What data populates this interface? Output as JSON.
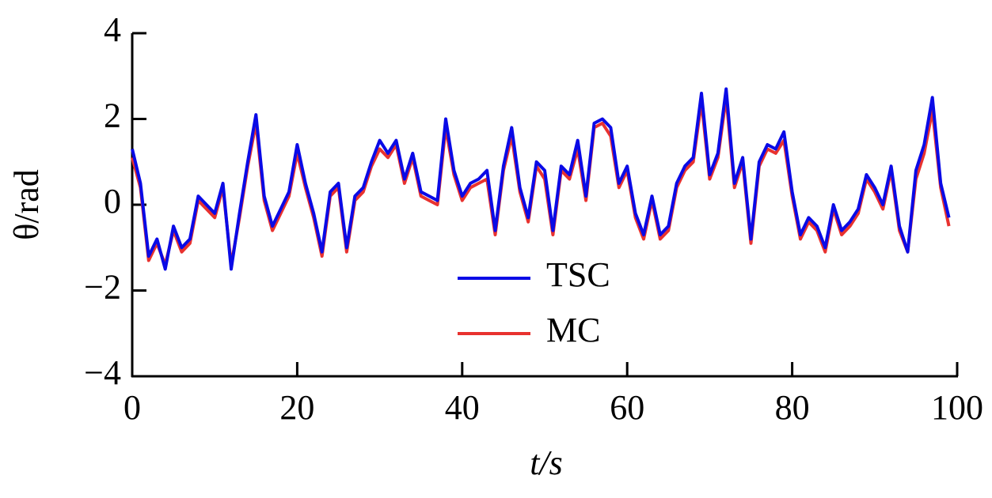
{
  "chart_data": {
    "type": "line",
    "xlabel": "t/s",
    "ylabel": "θ/rad",
    "x": [
      0,
      1,
      2,
      3,
      4,
      5,
      6,
      7,
      8,
      9,
      10,
      11,
      12,
      13,
      14,
      15,
      16,
      17,
      18,
      19,
      20,
      21,
      22,
      23,
      24,
      25,
      26,
      27,
      28,
      29,
      30,
      31,
      32,
      33,
      34,
      35,
      36,
      37,
      38,
      39,
      40,
      41,
      42,
      43,
      44,
      45,
      46,
      47,
      48,
      49,
      50,
      51,
      52,
      53,
      54,
      55,
      56,
      57,
      58,
      59,
      60,
      61,
      62,
      63,
      64,
      65,
      66,
      67,
      68,
      69,
      70,
      71,
      72,
      73,
      74,
      75,
      76,
      77,
      78,
      79,
      80,
      81,
      82,
      83,
      84,
      85,
      86,
      87,
      88,
      89,
      90,
      91,
      92,
      93,
      94,
      95,
      96,
      97,
      98,
      99
    ],
    "series": [
      {
        "name": "MC",
        "color": "#e8322f",
        "values": [
          1.1,
          0.4,
          -1.3,
          -0.9,
          -1.4,
          -0.6,
          -1.1,
          -0.9,
          0.1,
          -0.1,
          -0.3,
          0.4,
          -1.4,
          -0.3,
          0.9,
          1.9,
          0.1,
          -0.6,
          -0.2,
          0.2,
          1.2,
          0.4,
          -0.3,
          -1.2,
          0.2,
          0.4,
          -1.1,
          0.1,
          0.3,
          0.9,
          1.3,
          1.1,
          1.4,
          0.5,
          1.1,
          0.2,
          0.1,
          0,
          1.8,
          0.7,
          0.1,
          0.4,
          0.5,
          0.6,
          -0.7,
          0.8,
          1.6,
          0.3,
          -0.4,
          0.9,
          0.6,
          -0.7,
          0.8,
          0.6,
          1.3,
          0.1,
          1.8,
          1.9,
          1.6,
          0.4,
          0.8,
          -0.3,
          -0.8,
          0.1,
          -0.8,
          -0.6,
          0.4,
          0.8,
          1,
          2.4,
          0.6,
          1.1,
          2.5,
          0.4,
          1,
          -0.9,
          0.9,
          1.3,
          1.2,
          1.5,
          0.2,
          -0.8,
          -0.4,
          -0.6,
          -1.1,
          -0.1,
          -0.7,
          -0.5,
          -0.2,
          0.6,
          0.3,
          -0.1,
          0.8,
          -0.6,
          -1.1,
          0.6,
          1.2,
          2.2,
          0.4,
          -0.5
        ]
      },
      {
        "name": "TSC",
        "color": "#0a0ae6",
        "values": [
          1.3,
          0.5,
          -1.2,
          -0.8,
          -1.5,
          -0.5,
          -1,
          -0.8,
          0.2,
          0,
          -0.2,
          0.5,
          -1.5,
          -0.2,
          1,
          2.1,
          0.2,
          -0.5,
          -0.1,
          0.3,
          1.4,
          0.5,
          -0.2,
          -1.1,
          0.3,
          0.5,
          -1,
          0.2,
          0.4,
          1,
          1.5,
          1.2,
          1.5,
          0.6,
          1.2,
          0.3,
          0.2,
          0.1,
          2,
          0.8,
          0.2,
          0.5,
          0.6,
          0.8,
          -0.6,
          0.9,
          1.8,
          0.4,
          -0.3,
          1,
          0.8,
          -0.6,
          0.9,
          0.7,
          1.5,
          0.2,
          1.9,
          2,
          1.8,
          0.5,
          0.9,
          -0.2,
          -0.7,
          0.2,
          -0.7,
          -0.5,
          0.5,
          0.9,
          1.1,
          2.6,
          0.7,
          1.2,
          2.7,
          0.5,
          1.1,
          -0.8,
          1,
          1.4,
          1.3,
          1.7,
          0.3,
          -0.7,
          -0.3,
          -0.5,
          -1,
          0,
          -0.6,
          -0.4,
          -0.1,
          0.7,
          0.4,
          0,
          0.9,
          -0.5,
          -1.1,
          0.8,
          1.4,
          2.5,
          0.5,
          -0.3
        ]
      }
    ],
    "xlim": [
      0,
      100
    ],
    "xticks": [
      0,
      20,
      40,
      60,
      80,
      100
    ],
    "ylim": [
      -4,
      4
    ],
    "yticks": [
      {
        "value": -4,
        "label": "−4"
      },
      {
        "value": -2,
        "label": "−2"
      },
      0,
      2,
      4
    ]
  }
}
